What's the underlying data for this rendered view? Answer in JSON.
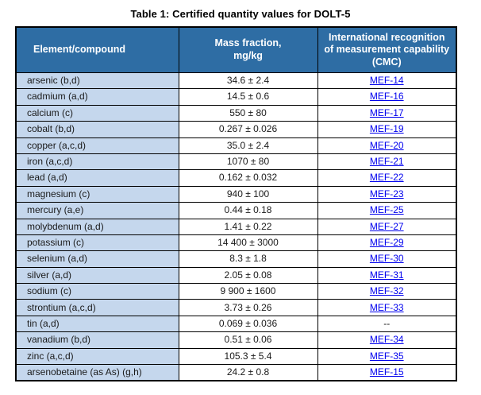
{
  "title": "Table 1: Certified quantity values for DOLT-5",
  "colors": {
    "header_bg": "#2E6DA4",
    "header_text": "#FFFFFF",
    "element_col_bg": "#C5D7ED",
    "border": "#000000",
    "link": "#0000EE",
    "body_text": "#1A1A1A"
  },
  "table": {
    "columns": [
      "Element/compound",
      "Mass fraction,\nmg/kg",
      "International recognition of measurement capability (CMC)"
    ],
    "rows": [
      {
        "element": "arsenic (b,d)",
        "mass_fraction": "34.6 ± 2.4",
        "cmc": "MEF-14",
        "cmc_link": true
      },
      {
        "element": "cadmium (a,d)",
        "mass_fraction": "14.5 ± 0.6",
        "cmc": "MEF-16",
        "cmc_link": true
      },
      {
        "element": "calcium (c)",
        "mass_fraction": "550 ± 80",
        "cmc": "MEF-17",
        "cmc_link": true
      },
      {
        "element": "cobalt (b,d)",
        "mass_fraction": "0.267 ± 0.026",
        "cmc": "MEF-19",
        "cmc_link": true
      },
      {
        "element": "copper (a,c,d)",
        "mass_fraction": "35.0 ± 2.4",
        "cmc": "MEF-20",
        "cmc_link": true
      },
      {
        "element": "iron (a,c,d)",
        "mass_fraction": "1070 ± 80",
        "cmc": "MEF-21",
        "cmc_link": true
      },
      {
        "element": "lead (a,d)",
        "mass_fraction": "0.162 ± 0.032",
        "cmc": "MEF-22",
        "cmc_link": true
      },
      {
        "element": "magnesium (c)",
        "mass_fraction": "940 ± 100",
        "cmc": "MEF-23",
        "cmc_link": true
      },
      {
        "element": "mercury (a,e)",
        "mass_fraction": "0.44 ± 0.18",
        "cmc": "MEF-25",
        "cmc_link": true
      },
      {
        "element": "molybdenum (a,d)",
        "mass_fraction": "1.41 ± 0.22",
        "cmc": "MEF-27",
        "cmc_link": true
      },
      {
        "element": "potassium (c)",
        "mass_fraction": "14 400 ± 3000",
        "cmc": "MEF-29",
        "cmc_link": true
      },
      {
        "element": "selenium (a,d)",
        "mass_fraction": "8.3 ± 1.8",
        "cmc": "MEF-30",
        "cmc_link": true
      },
      {
        "element": "silver (a,d)",
        "mass_fraction": "2.05 ± 0.08",
        "cmc": "MEF-31",
        "cmc_link": true
      },
      {
        "element": "sodium (c)",
        "mass_fraction": "9 900 ± 1600",
        "cmc": "MEF-32",
        "cmc_link": true
      },
      {
        "element": "strontium (a,c,d)",
        "mass_fraction": "3.73 ± 0.26",
        "cmc": "MEF-33",
        "cmc_link": true
      },
      {
        "element": "tin (a,d)",
        "mass_fraction": "0.069 ± 0.036",
        "cmc": "--",
        "cmc_link": false
      },
      {
        "element": "vanadium (b,d)",
        "mass_fraction": "0.51 ± 0.06",
        "cmc": "MEF-34",
        "cmc_link": true
      },
      {
        "element": "zinc (a,c,d)",
        "mass_fraction": "105.3 ± 5.4",
        "cmc": "MEF-35",
        "cmc_link": true
      },
      {
        "element": "arsenobetaine (as As) (g,h)",
        "mass_fraction": "24.2 ± 0.8",
        "cmc": "MEF-15",
        "cmc_link": true
      }
    ]
  }
}
